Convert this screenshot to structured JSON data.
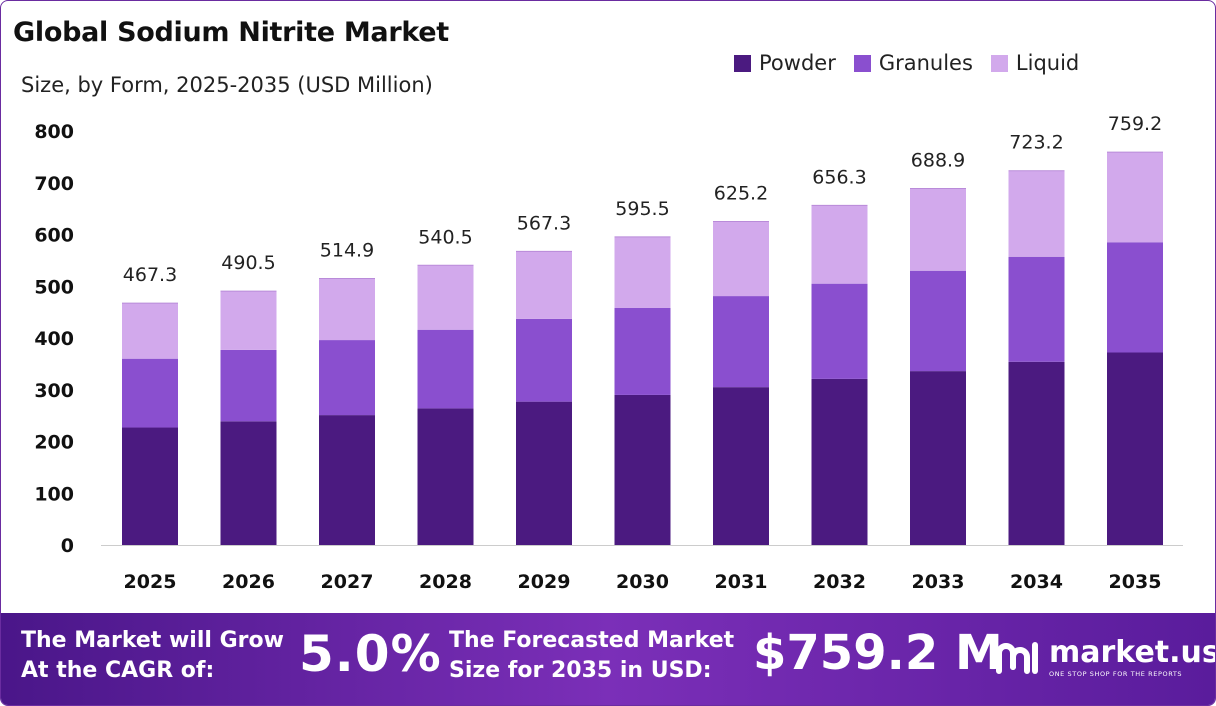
{
  "header": {
    "title": "Global Sodium Nitrite Market",
    "subtitle": "Size, by Form, 2025-2035 (USD Million)"
  },
  "colors": {
    "Powder": "#4b1a80",
    "Granules": "#8a4fcf",
    "Liquid": "#d2a9ec"
  },
  "chart_data": {
    "type": "bar",
    "stacked": true,
    "title": "Global Sodium Nitrite Market",
    "subtitle": "Size, by Form, 2025-2035 (USD Million)",
    "categories": [
      "2025",
      "2026",
      "2027",
      "2028",
      "2029",
      "2030",
      "2031",
      "2032",
      "2033",
      "2034",
      "2035"
    ],
    "series": [
      {
        "name": "Powder",
        "values": [
          227,
          239,
          251,
          264,
          277,
          290,
          305,
          321,
          336,
          354,
          372
        ]
      },
      {
        "name": "Granules",
        "values": [
          133,
          138,
          145,
          152,
          160,
          168,
          176,
          184,
          194,
          203,
          213
        ]
      },
      {
        "name": "Liquid",
        "values": [
          107.3,
          113.5,
          118.9,
          124.5,
          130.3,
          137.5,
          144.2,
          151.3,
          158.9,
          166.2,
          174.2
        ]
      }
    ],
    "totals": [
      "467.3",
      "490.5",
      "514.9",
      "540.5",
      "567.3",
      "595.5",
      "625.2",
      "656.3",
      "688.9",
      "723.2",
      "759.2"
    ],
    "yticks": [
      "0",
      "100",
      "200",
      "300",
      "400",
      "500",
      "600",
      "700",
      "800"
    ],
    "ylim": [
      0,
      800
    ],
    "grid": false,
    "legend_position": "top-right"
  },
  "footer": {
    "cagr_label_line1": "The Market will Grow",
    "cagr_label_line2": "At the CAGR of:",
    "cagr_value": "5.0%",
    "size_label_line1": "The Forecasted Market",
    "size_label_line2": "Size for 2035 in USD:",
    "size_value": "$759.2 M",
    "brand_name": "market.us",
    "brand_tagline": "ONE STOP SHOP FOR THE REPORTS"
  }
}
